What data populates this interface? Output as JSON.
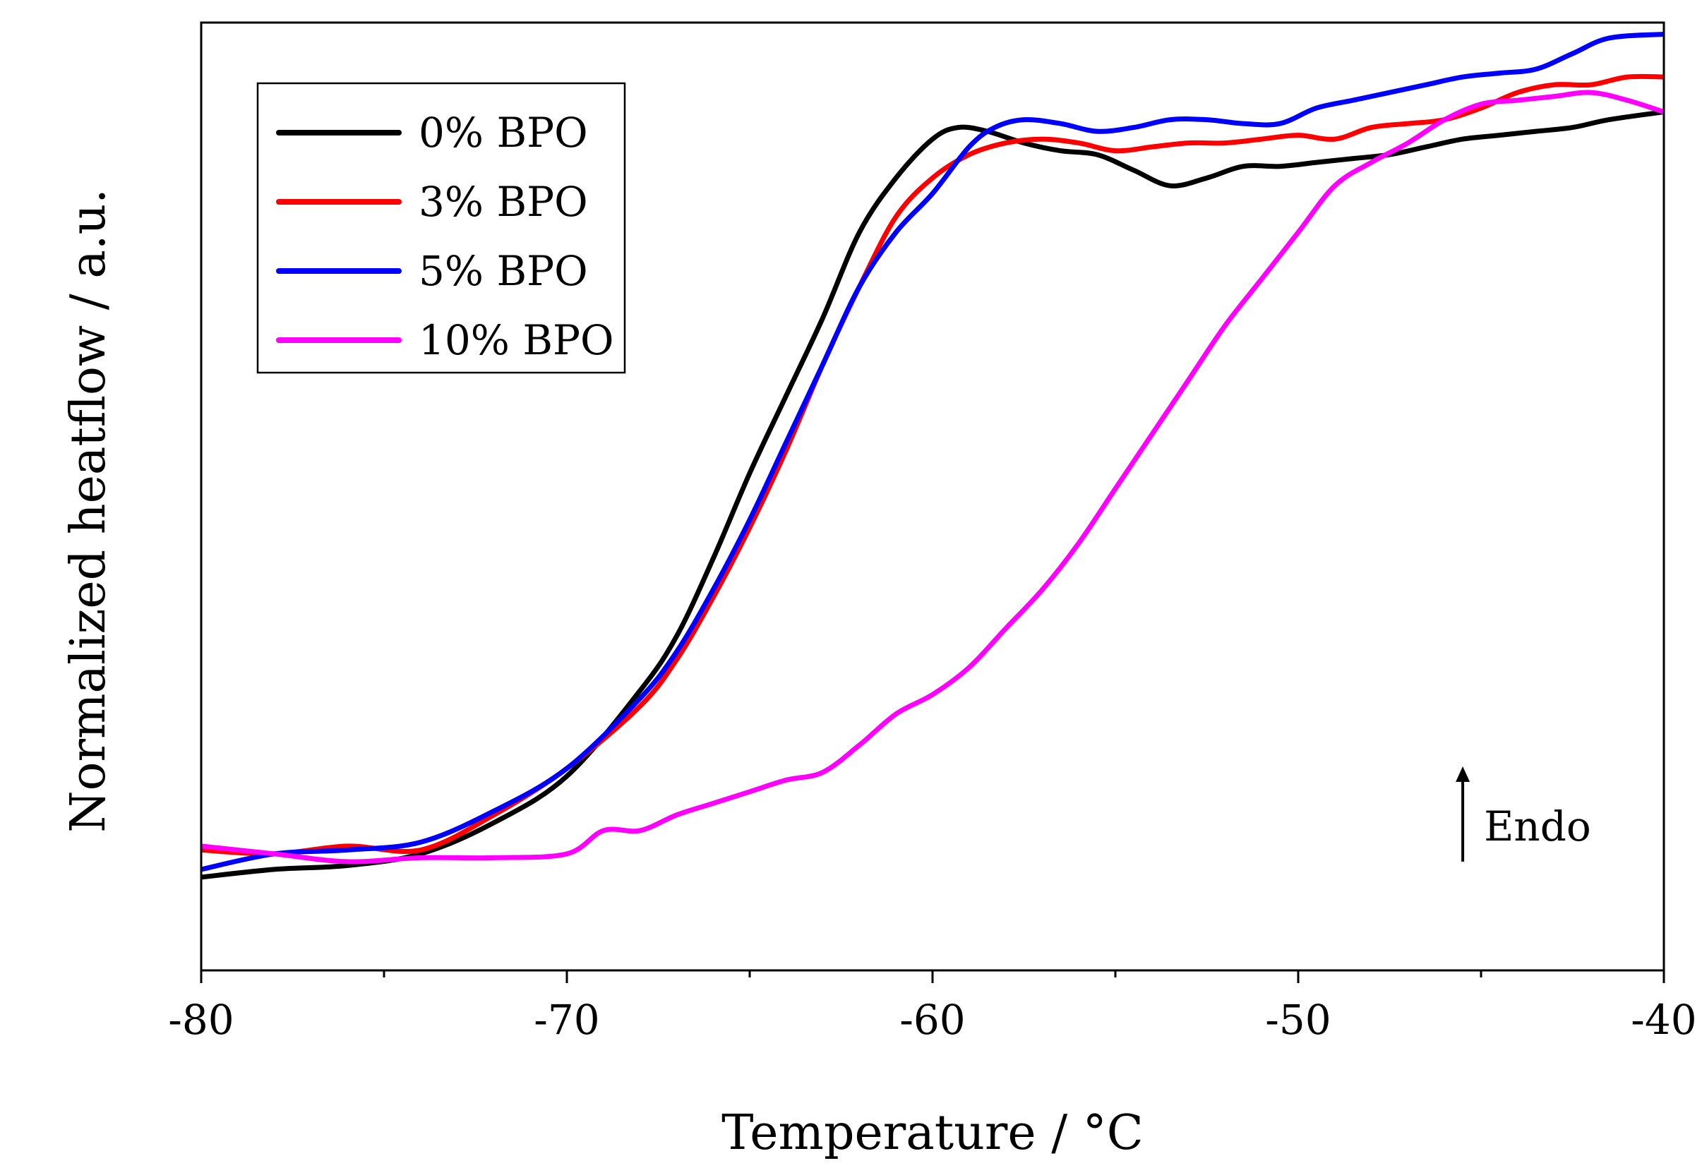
{
  "chart_data": {
    "type": "line",
    "title": "",
    "xlabel": "Temperature / °C",
    "ylabel": "Normalized heatflow / a.u.",
    "xlim": [
      -80,
      -40
    ],
    "ylim": [
      -0.12,
      1.1
    ],
    "x_ticks": [
      -80,
      -70,
      -60,
      -50,
      -40
    ],
    "x_tick_labels": [
      "-80",
      "-70",
      "-60",
      "-50",
      "-40"
    ],
    "y_ticks_shown": false,
    "grid": false,
    "legend_position": "top-left",
    "annotation": {
      "text": "Endo",
      "x": -45.5,
      "y": 0.02,
      "arrow": "up"
    },
    "series": [
      {
        "name": "0% BPO",
        "color": "#000000",
        "points": [
          [
            -80,
            0.0
          ],
          [
            -78,
            0.01
          ],
          [
            -76,
            0.015
          ],
          [
            -74,
            0.03
          ],
          [
            -72,
            0.07
          ],
          [
            -70,
            0.13
          ],
          [
            -68,
            0.24
          ],
          [
            -67,
            0.31
          ],
          [
            -66,
            0.41
          ],
          [
            -65,
            0.52
          ],
          [
            -64,
            0.62
          ],
          [
            -63,
            0.72
          ],
          [
            -62,
            0.83
          ],
          [
            -61,
            0.9
          ],
          [
            -60,
            0.95
          ],
          [
            -59.3,
            0.965
          ],
          [
            -58.5,
            0.96
          ],
          [
            -57.5,
            0.945
          ],
          [
            -56.5,
            0.935
          ],
          [
            -55.5,
            0.93
          ],
          [
            -54.5,
            0.91
          ],
          [
            -53.5,
            0.89
          ],
          [
            -52.5,
            0.9
          ],
          [
            -51.5,
            0.915
          ],
          [
            -50.5,
            0.915
          ],
          [
            -49.5,
            0.92
          ],
          [
            -48.5,
            0.925
          ],
          [
            -47.5,
            0.93
          ],
          [
            -46.5,
            0.94
          ],
          [
            -45.5,
            0.95
          ],
          [
            -44.5,
            0.955
          ],
          [
            -43.5,
            0.96
          ],
          [
            -42.5,
            0.965
          ],
          [
            -41.5,
            0.975
          ],
          [
            -40,
            0.985
          ]
        ]
      },
      {
        "name": "3% BPO",
        "color": "#ff0000",
        "points": [
          [
            -80,
            0.035
          ],
          [
            -78,
            0.03
          ],
          [
            -76,
            0.04
          ],
          [
            -74,
            0.035
          ],
          [
            -72,
            0.08
          ],
          [
            -70,
            0.14
          ],
          [
            -68,
            0.22
          ],
          [
            -67,
            0.28
          ],
          [
            -66,
            0.36
          ],
          [
            -65,
            0.45
          ],
          [
            -64,
            0.55
          ],
          [
            -63,
            0.66
          ],
          [
            -62,
            0.76
          ],
          [
            -61,
            0.85
          ],
          [
            -60,
            0.9
          ],
          [
            -59,
            0.93
          ],
          [
            -58,
            0.945
          ],
          [
            -57,
            0.95
          ],
          [
            -56,
            0.945
          ],
          [
            -55,
            0.935
          ],
          [
            -54,
            0.94
          ],
          [
            -53,
            0.945
          ],
          [
            -52,
            0.945
          ],
          [
            -51,
            0.95
          ],
          [
            -50,
            0.955
          ],
          [
            -49,
            0.95
          ],
          [
            -48,
            0.965
          ],
          [
            -47,
            0.97
          ],
          [
            -46,
            0.975
          ],
          [
            -45,
            0.99
          ],
          [
            -44,
            1.01
          ],
          [
            -43,
            1.02
          ],
          [
            -42,
            1.02
          ],
          [
            -41,
            1.03
          ],
          [
            -40,
            1.03
          ]
        ]
      },
      {
        "name": "5% BPO",
        "color": "#0000ff",
        "points": [
          [
            -80,
            0.01
          ],
          [
            -78,
            0.03
          ],
          [
            -76,
            0.035
          ],
          [
            -74,
            0.045
          ],
          [
            -72,
            0.085
          ],
          [
            -70,
            0.14
          ],
          [
            -68,
            0.23
          ],
          [
            -67,
            0.29
          ],
          [
            -66,
            0.37
          ],
          [
            -65,
            0.46
          ],
          [
            -64,
            0.56
          ],
          [
            -63,
            0.66
          ],
          [
            -62,
            0.76
          ],
          [
            -61,
            0.83
          ],
          [
            -60,
            0.88
          ],
          [
            -59,
            0.94
          ],
          [
            -58.3,
            0.965
          ],
          [
            -57.5,
            0.975
          ],
          [
            -56.5,
            0.97
          ],
          [
            -55.5,
            0.96
          ],
          [
            -54.5,
            0.965
          ],
          [
            -53.5,
            0.975
          ],
          [
            -52.5,
            0.975
          ],
          [
            -51.5,
            0.97
          ],
          [
            -50.5,
            0.97
          ],
          [
            -49.5,
            0.99
          ],
          [
            -48.5,
            1.0
          ],
          [
            -47.5,
            1.01
          ],
          [
            -46.5,
            1.02
          ],
          [
            -45.5,
            1.03
          ],
          [
            -44.5,
            1.035
          ],
          [
            -43.5,
            1.04
          ],
          [
            -42.5,
            1.06
          ],
          [
            -41.5,
            1.08
          ],
          [
            -40,
            1.085
          ]
        ]
      },
      {
        "name": "10% BPO",
        "color": "#ff00ff",
        "points": [
          [
            -80,
            0.04
          ],
          [
            -78,
            0.03
          ],
          [
            -76,
            0.02
          ],
          [
            -74,
            0.025
          ],
          [
            -72,
            0.025
          ],
          [
            -70,
            0.03
          ],
          [
            -69,
            0.06
          ],
          [
            -68,
            0.06
          ],
          [
            -67,
            0.08
          ],
          [
            -66,
            0.095
          ],
          [
            -65,
            0.11
          ],
          [
            -64,
            0.125
          ],
          [
            -63,
            0.135
          ],
          [
            -62,
            0.17
          ],
          [
            -61,
            0.21
          ],
          [
            -60,
            0.235
          ],
          [
            -59,
            0.27
          ],
          [
            -58,
            0.32
          ],
          [
            -57,
            0.37
          ],
          [
            -56,
            0.43
          ],
          [
            -55,
            0.5
          ],
          [
            -54,
            0.57
          ],
          [
            -53,
            0.64
          ],
          [
            -52,
            0.71
          ],
          [
            -51,
            0.77
          ],
          [
            -50,
            0.83
          ],
          [
            -49,
            0.89
          ],
          [
            -48,
            0.92
          ],
          [
            -47,
            0.945
          ],
          [
            -46,
            0.975
          ],
          [
            -45,
            0.995
          ],
          [
            -44,
            1.0
          ],
          [
            -43,
            1.005
          ],
          [
            -42,
            1.01
          ],
          [
            -41,
            1.0
          ],
          [
            -40,
            0.985
          ]
        ]
      }
    ]
  }
}
